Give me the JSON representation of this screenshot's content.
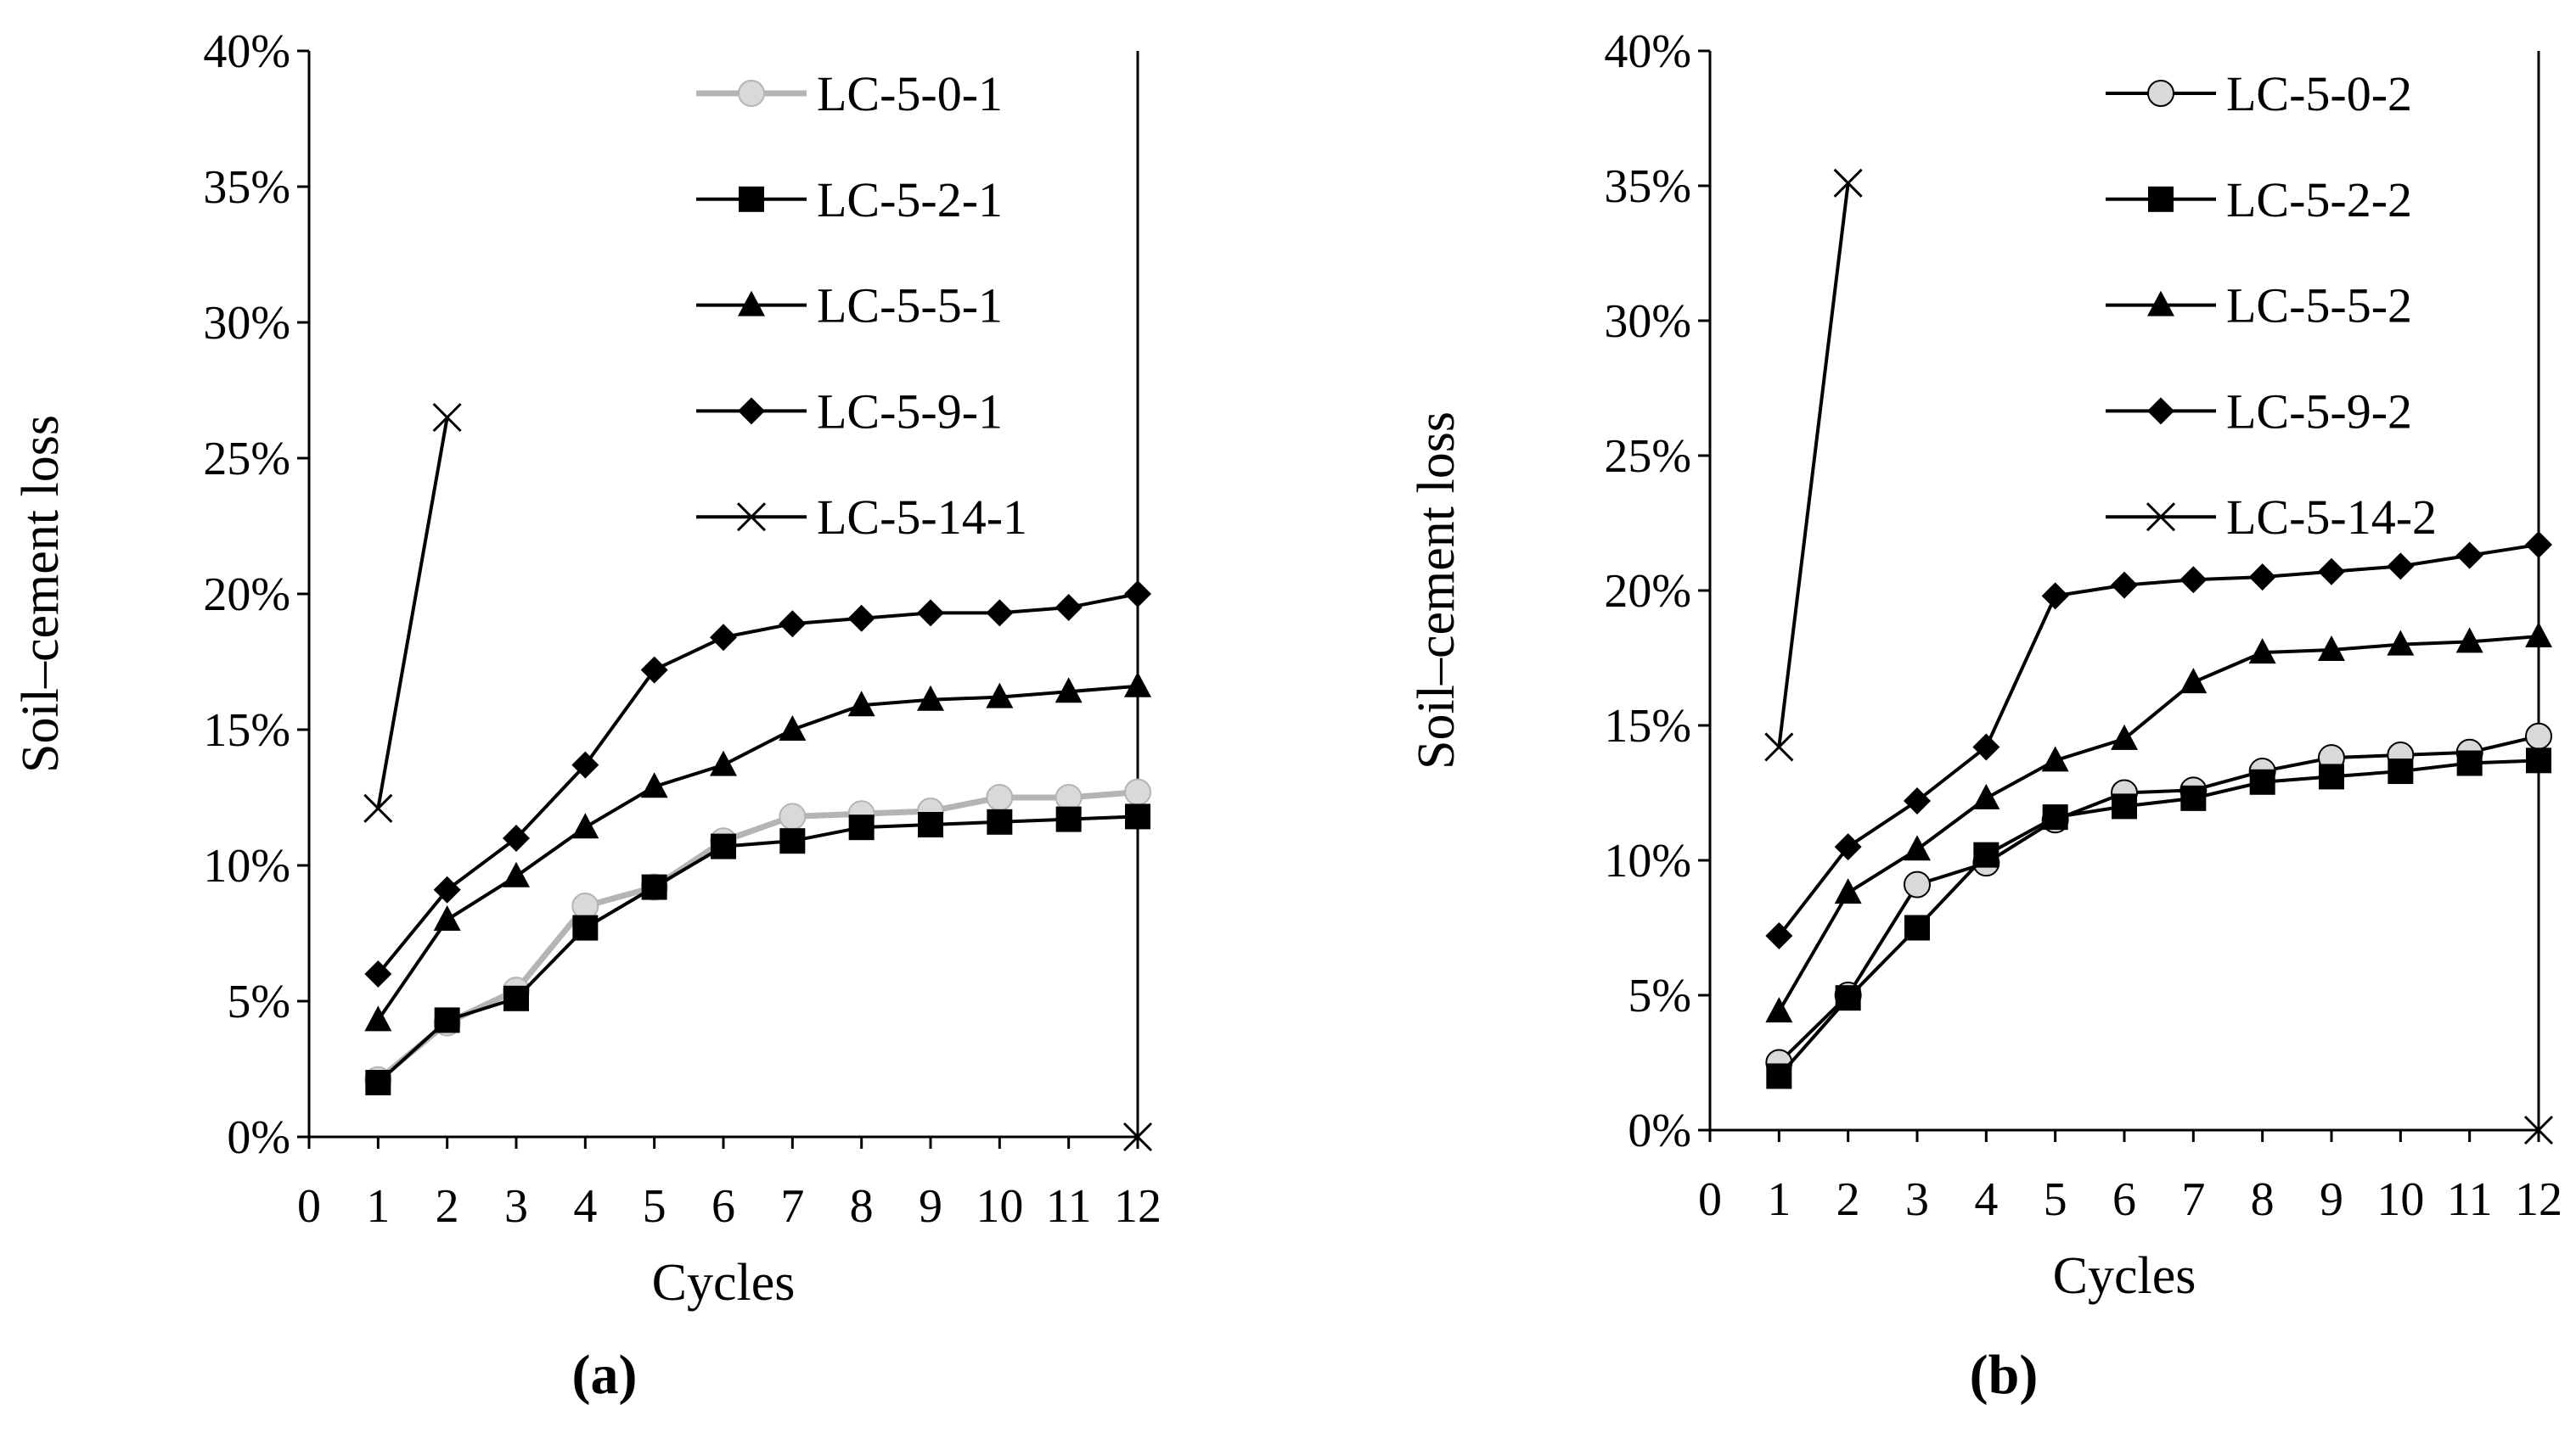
{
  "chart_data": [
    {
      "type": "line",
      "panel_label": "(a)",
      "xlabel": "Cycles",
      "ylabel": "Soil–cement loss",
      "xlim": [
        0,
        12
      ],
      "ylim": [
        0,
        40
      ],
      "x_ticks": [
        "0",
        "1",
        "2",
        "3",
        "4",
        "5",
        "6",
        "7",
        "8",
        "9",
        "10",
        "11",
        "12"
      ],
      "y_ticks": [
        "0%",
        "5%",
        "10%",
        "15%",
        "20%",
        "25%",
        "30%",
        "35%",
        "40%"
      ],
      "grid": false,
      "legend_position": "top-right",
      "series": [
        {
          "name": "LC-5-0-1",
          "marker": "circle",
          "color": "#b4b4b4",
          "markerFill": "#d9d9d9",
          "x": [
            1,
            2,
            3,
            4,
            5,
            6,
            7,
            8,
            9,
            10,
            11,
            12
          ],
          "values": [
            2.1,
            4.2,
            5.4,
            8.5,
            9.2,
            10.9,
            11.8,
            11.9,
            12.0,
            12.5,
            12.5,
            12.7
          ]
        },
        {
          "name": "LC-5-2-1",
          "marker": "square",
          "color": "#000000",
          "markerFill": "#000000",
          "x": [
            1,
            2,
            3,
            4,
            5,
            6,
            7,
            8,
            9,
            10,
            11,
            12
          ],
          "values": [
            2.0,
            4.3,
            5.1,
            7.7,
            9.2,
            10.7,
            10.9,
            11.4,
            11.5,
            11.6,
            11.7,
            11.8
          ]
        },
        {
          "name": "LC-5-5-1",
          "marker": "triangle",
          "color": "#000000",
          "markerFill": "#000000",
          "x": [
            1,
            2,
            3,
            4,
            5,
            6,
            7,
            8,
            9,
            10,
            11,
            12
          ],
          "values": [
            4.3,
            8.0,
            9.6,
            11.4,
            12.9,
            13.7,
            15.0,
            15.9,
            16.1,
            16.2,
            16.4,
            16.6
          ]
        },
        {
          "name": "LC-5-9-1",
          "marker": "diamond",
          "color": "#000000",
          "markerFill": "#000000",
          "x": [
            1,
            2,
            3,
            4,
            5,
            6,
            7,
            8,
            9,
            10,
            11,
            12
          ],
          "values": [
            6.0,
            9.1,
            11.0,
            13.7,
            17.2,
            18.4,
            18.9,
            19.1,
            19.3,
            19.3,
            19.5,
            20.0
          ]
        },
        {
          "name": "LC-5-14-1",
          "marker": "x",
          "color": "#000000",
          "markerFill": "none",
          "x": [
            1,
            2
          ],
          "values": [
            12.1,
            26.5
          ],
          "extra_points": [
            {
              "x": 12,
              "y": 0
            }
          ]
        }
      ]
    },
    {
      "type": "line",
      "panel_label": "(b)",
      "xlabel": "Cycles",
      "ylabel": "Soil–cement loss",
      "xlim": [
        0,
        12
      ],
      "ylim": [
        0,
        40
      ],
      "x_ticks": [
        "0",
        "1",
        "2",
        "3",
        "4",
        "5",
        "6",
        "7",
        "8",
        "9",
        "10",
        "11",
        "12"
      ],
      "y_ticks": [
        "0%",
        "5%",
        "10%",
        "15%",
        "20%",
        "25%",
        "30%",
        "35%",
        "40%"
      ],
      "grid": false,
      "legend_position": "top-right",
      "series": [
        {
          "name": "LC-5-0-2",
          "marker": "circle",
          "color": "#000000",
          "markerFill": "#d9d9d9",
          "x": [
            1,
            2,
            3,
            4,
            5,
            6,
            7,
            8,
            9,
            10,
            11,
            12
          ],
          "values": [
            2.5,
            5.0,
            9.1,
            9.9,
            11.5,
            12.5,
            12.6,
            13.3,
            13.8,
            13.9,
            14.0,
            14.6
          ]
        },
        {
          "name": "LC-5-2-2",
          "marker": "square",
          "color": "#000000",
          "markerFill": "#000000",
          "x": [
            1,
            2,
            3,
            4,
            5,
            6,
            7,
            8,
            9,
            10,
            11,
            12
          ],
          "values": [
            2.0,
            4.9,
            7.5,
            10.2,
            11.6,
            12.0,
            12.3,
            12.9,
            13.1,
            13.3,
            13.6,
            13.7
          ]
        },
        {
          "name": "LC-5-5-2",
          "marker": "triangle",
          "color": "#000000",
          "markerFill": "#000000",
          "x": [
            1,
            2,
            3,
            4,
            5,
            6,
            7,
            8,
            9,
            10,
            11,
            12
          ],
          "values": [
            4.4,
            8.8,
            10.4,
            12.3,
            13.7,
            14.5,
            16.6,
            17.7,
            17.8,
            18.0,
            18.1,
            18.3
          ]
        },
        {
          "name": "LC-5-9-2",
          "marker": "diamond",
          "color": "#000000",
          "markerFill": "#000000",
          "x": [
            1,
            2,
            3,
            4,
            5,
            6,
            7,
            8,
            9,
            10,
            11,
            12
          ],
          "values": [
            7.2,
            10.5,
            12.2,
            14.2,
            19.8,
            20.2,
            20.4,
            20.5,
            20.7,
            20.9,
            21.3,
            21.7
          ]
        },
        {
          "name": "LC-5-14-2",
          "marker": "x",
          "color": "#000000",
          "markerFill": "none",
          "x": [
            1,
            2
          ],
          "values": [
            14.2,
            35.1
          ],
          "extra_points": [
            {
              "x": 12,
              "y": 0
            }
          ]
        }
      ]
    }
  ]
}
